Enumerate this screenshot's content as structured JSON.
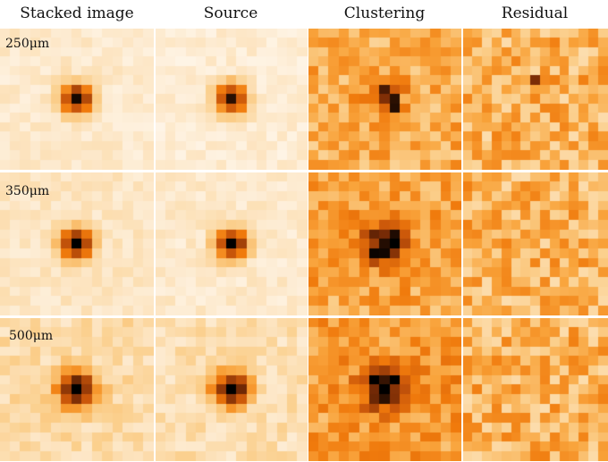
{
  "figure": {
    "columns": [
      {
        "key": "stacked",
        "title": "Stacked image"
      },
      {
        "key": "source",
        "title": "Source"
      },
      {
        "key": "clustering",
        "title": "Clustering"
      },
      {
        "key": "residual",
        "title": "Residual"
      }
    ],
    "rows": [
      {
        "key": "250",
        "label": "250μm"
      },
      {
        "key": "350",
        "label": "350μm"
      },
      {
        "key": "500",
        "label": "500μm"
      }
    ],
    "colormap": [
      "#ffffff",
      "#fde9cc",
      "#fbcf8c",
      "#f9a43c",
      "#f07a0c",
      "#c9560a",
      "#7a2c06",
      "#000000"
    ]
  }
}
